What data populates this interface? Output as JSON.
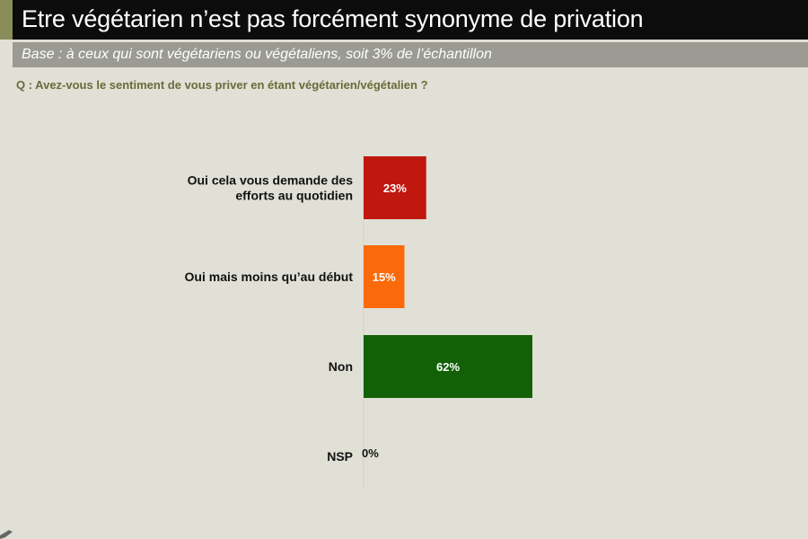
{
  "header": {
    "title": "Etre végétarien n’est pas forcément synonyme de privation",
    "base": "Base : à ceux qui sont végétariens ou végétaliens, soit 3% de l’échantillon"
  },
  "question": "Q : Avez-vous le sentiment de vous priver en étant végétarien/végétalien ?",
  "colors": {
    "title_bg": "#0c0c0c",
    "base_bg": "#9b9b94",
    "page_bg": "#e0e0d6",
    "accent": "#8a8d5a",
    "question_text": "#6b6a3a"
  },
  "chart_data": {
    "type": "bar",
    "orientation": "horizontal",
    "categories": [
      [
        "Oui cela vous demande des",
        "efforts au quotidien"
      ],
      [
        "Oui mais moins qu’au début"
      ],
      [
        "Non"
      ],
      [
        "NSP"
      ]
    ],
    "values": [
      23,
      15,
      62,
      0
    ],
    "value_labels": [
      "23%",
      "15%",
      "62%",
      "0%"
    ],
    "colors": [
      "#c0180f",
      "#fb6a0a",
      "#136107",
      "#c0c0c0"
    ],
    "xlim": [
      0,
      100
    ],
    "grid": false,
    "legend": "none"
  }
}
